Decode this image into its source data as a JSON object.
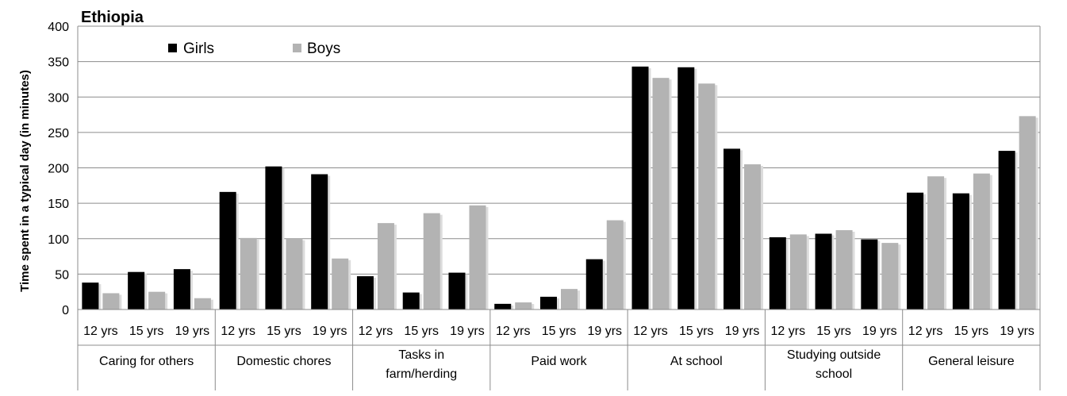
{
  "chart_data": {
    "type": "bar",
    "title": "Ethiopia",
    "ylabel": "Time spent in a typical day (in minutes)",
    "ylim": [
      0,
      400
    ],
    "yticks": [
      0,
      50,
      100,
      150,
      200,
      250,
      300,
      350,
      400
    ],
    "grid": true,
    "legend_position": "top-left",
    "groups": [
      {
        "label": "Caring for others",
        "lines": [
          "Caring for others"
        ]
      },
      {
        "label": "Domestic chores",
        "lines": [
          "Domestic chores"
        ]
      },
      {
        "label": "Tasks in farm/herding",
        "lines": [
          "Tasks in",
          "farm/herding"
        ]
      },
      {
        "label": "Paid work",
        "lines": [
          "Paid work"
        ]
      },
      {
        "label": "At school",
        "lines": [
          "At school"
        ]
      },
      {
        "label": "Studying outside school",
        "lines": [
          "Studying outside",
          "school"
        ]
      },
      {
        "label": "General leisure",
        "lines": [
          "General leisure"
        ]
      }
    ],
    "subcategories": [
      "12 yrs",
      "15 yrs",
      "19 yrs"
    ],
    "series": [
      {
        "name": "Girls",
        "color": "#000000",
        "values": [
          38,
          53,
          57,
          166,
          202,
          191,
          47,
          24,
          52,
          8,
          18,
          71,
          343,
          342,
          227,
          102,
          107,
          99,
          165,
          164,
          224
        ]
      },
      {
        "name": "Boys",
        "color": "#b3b3b3",
        "values": [
          23,
          25,
          16,
          101,
          100,
          72,
          122,
          136,
          147,
          10,
          29,
          126,
          327,
          319,
          205,
          106,
          112,
          94,
          188,
          192,
          273
        ]
      }
    ]
  }
}
